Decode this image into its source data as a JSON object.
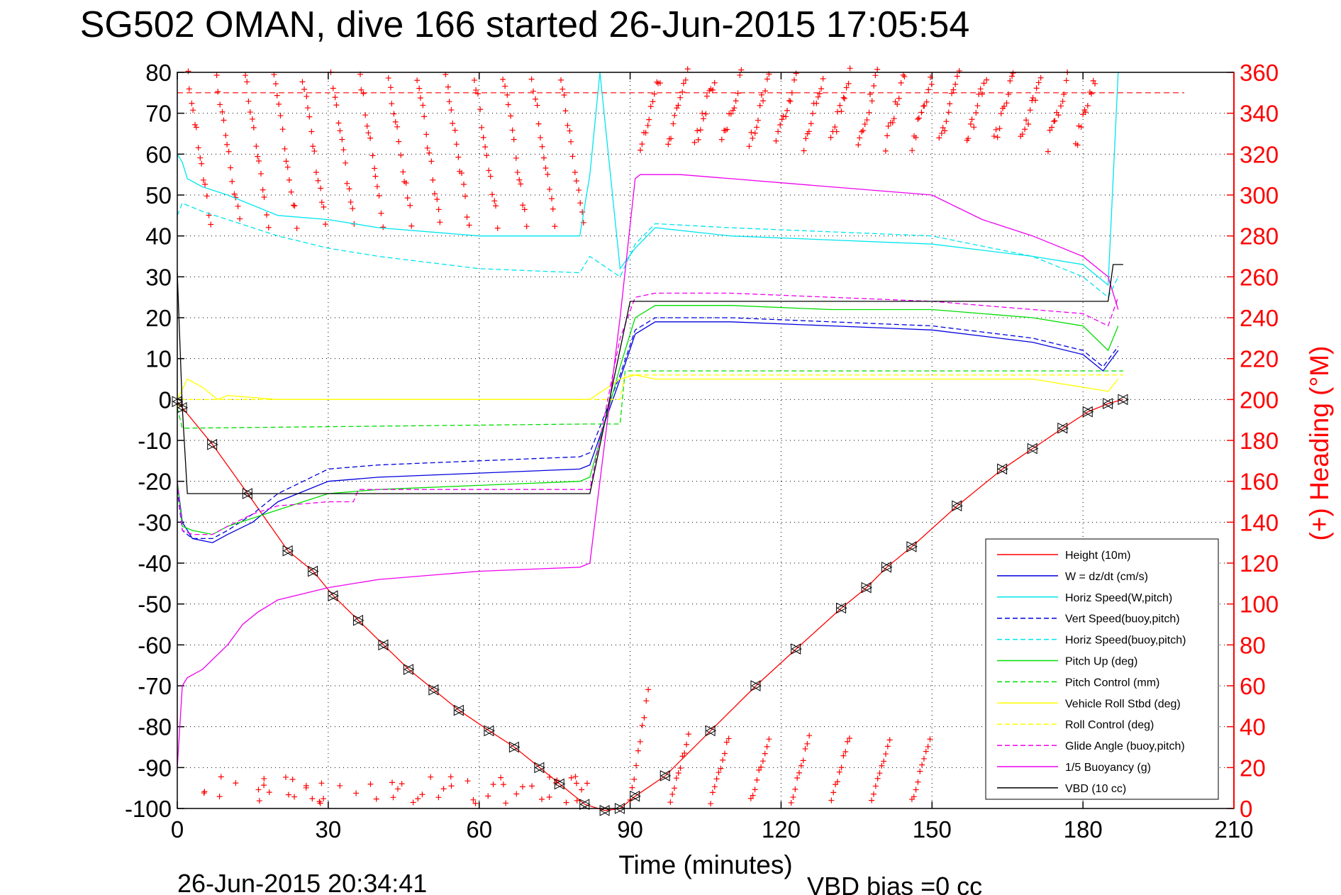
{
  "chart_data": {
    "type": "line",
    "title": "SG502 OMAN, dive 166 started 26-Jun-2015 17:05:54",
    "xlabel": "Time (minutes)",
    "ylabel_right": "(+) Heading (°M)",
    "footer_left": "26-Jun-2015 20:34:41",
    "footer_right": "VBD bias =0 cc",
    "xlim": [
      0,
      210
    ],
    "ylim": [
      -100,
      80
    ],
    "ylim_right": [
      0,
      360
    ],
    "xticks": [
      "0",
      "30",
      "60",
      "90",
      "120",
      "150",
      "180",
      "210"
    ],
    "yticks": [
      "80",
      "70",
      "60",
      "50",
      "40",
      "30",
      "20",
      "10",
      "0",
      "-10",
      "-20",
      "-30",
      "-40",
      "-50",
      "-60",
      "-70",
      "-80",
      "-90",
      "-100"
    ],
    "yticks_right": [
      "360",
      "340",
      "320",
      "300",
      "280",
      "260",
      "240",
      "220",
      "200",
      "180",
      "160",
      "140",
      "120",
      "100",
      "80",
      "60",
      "40",
      "20",
      "0"
    ],
    "grid": true,
    "legend_position": "bottom-right",
    "heading_target": 350,
    "series": [
      {
        "name": "Height (10m)",
        "color": "#ff0000",
        "style": "solid",
        "x": [
          0,
          1,
          7,
          14,
          22,
          27,
          31,
          36,
          41,
          46,
          51,
          56,
          62,
          67,
          72,
          76,
          81,
          85,
          88,
          91,
          97,
          106,
          115,
          123,
          132,
          137,
          141,
          146,
          155,
          164,
          170,
          176,
          181,
          185,
          188
        ],
        "y": [
          -0.5,
          -2,
          -11,
          -23,
          -37,
          -42,
          -48,
          -54,
          -60,
          -66,
          -71,
          -76,
          -81,
          -85,
          -90,
          -94,
          -99,
          -100.5,
          -100,
          -97,
          -92,
          -81,
          -70,
          -61,
          -51,
          -46,
          -41,
          -36,
          -26,
          -17,
          -12,
          -7,
          -3,
          -1,
          0
        ]
      },
      {
        "name": "W = dz/dt (cm/s)",
        "color": "#0000dd",
        "style": "solid",
        "x": [
          0,
          1,
          3,
          7,
          10,
          15,
          20,
          30,
          40,
          60,
          80,
          82,
          88,
          91,
          95,
          110,
          130,
          150,
          170,
          180,
          184,
          187
        ],
        "y": [
          -20,
          -30,
          -34,
          -35,
          -33,
          -30,
          -25,
          -20,
          -19,
          -18,
          -17,
          -16,
          5,
          16,
          19,
          19,
          18,
          17,
          14,
          11,
          7,
          12
        ]
      },
      {
        "name": "Horiz Speed(W,pitch)",
        "color": "#00e5ee",
        "style": "solid",
        "x": [
          0,
          1,
          2,
          5,
          10,
          20,
          30,
          40,
          60,
          80,
          82,
          84,
          88,
          91,
          95,
          110,
          130,
          150,
          170,
          180,
          185,
          187
        ],
        "y": [
          60,
          58,
          54,
          52,
          50,
          45,
          44,
          42,
          40,
          40,
          55,
          80,
          32,
          37,
          42,
          40,
          39,
          38,
          35,
          33,
          28,
          80
        ]
      },
      {
        "name": "Vert Speed(buoy,pitch)",
        "color": "#0000dd",
        "style": "dashed",
        "x": [
          0,
          1,
          3,
          7,
          10,
          15,
          20,
          30,
          40,
          60,
          80,
          82,
          88,
          91,
          95,
          110,
          130,
          150,
          170,
          180,
          184,
          187
        ],
        "y": [
          -22,
          -32,
          -34,
          -34,
          -32,
          -28,
          -23,
          -17,
          -16,
          -15,
          -14,
          -13,
          6,
          17,
          20,
          20,
          19,
          18,
          15,
          12,
          8,
          13
        ]
      },
      {
        "name": "Horiz Speed(buoy,pitch)",
        "color": "#00e5ee",
        "style": "dashed",
        "x": [
          0,
          1,
          5,
          10,
          20,
          30,
          40,
          60,
          80,
          82,
          88,
          91,
          95,
          110,
          130,
          150,
          170,
          180,
          185,
          187
        ],
        "y": [
          45,
          48,
          46,
          44,
          40,
          37,
          35,
          32,
          31,
          35,
          30,
          38,
          43,
          42,
          41,
          40,
          35,
          30,
          25,
          30
        ]
      },
      {
        "name": "Pitch Up (deg)",
        "color": "#00dd00",
        "style": "solid",
        "x": [
          0,
          1,
          3,
          7,
          10,
          15,
          20,
          30,
          40,
          60,
          80,
          82,
          88,
          91,
          95,
          110,
          130,
          150,
          170,
          180,
          185,
          187
        ],
        "y": [
          -20,
          -31,
          -32,
          -33,
          -31,
          -29,
          -27,
          -23,
          -22,
          -21,
          -20,
          -19,
          8,
          20,
          23,
          23,
          22,
          22,
          20,
          18,
          12,
          18
        ]
      },
      {
        "name": "Pitch Control (mm)",
        "color": "#00dd00",
        "style": "dashed",
        "x": [
          0,
          1,
          2,
          81,
          82,
          88,
          89,
          184,
          185,
          188
        ],
        "y": [
          -2,
          -7,
          -7,
          -6,
          -6,
          -6,
          7,
          7,
          7,
          7
        ]
      },
      {
        "name": "Vehicle Roll Stbd (deg)",
        "color": "#ffff00",
        "style": "solid",
        "x": [
          0,
          2,
          5,
          8,
          10,
          20,
          40,
          60,
          80,
          82,
          88,
          91,
          95,
          110,
          130,
          150,
          170,
          180,
          185,
          187
        ],
        "y": [
          0,
          5,
          3,
          0,
          1,
          0,
          0,
          0,
          0,
          0,
          5,
          6,
          5,
          5,
          5,
          5,
          5,
          3,
          2,
          5
        ]
      },
      {
        "name": "Roll Control (deg)",
        "color": "#ffff00",
        "style": "dashed",
        "x": [
          0,
          1,
          81,
          82,
          88,
          89,
          184,
          185,
          188
        ],
        "y": [
          -2,
          0,
          0,
          0,
          0,
          6,
          6,
          6,
          6
        ]
      },
      {
        "name": "Glide Angle (buoy,pitch)",
        "color": "#ee00ee",
        "style": "dashed",
        "x": [
          0,
          1,
          3,
          7,
          10,
          15,
          20,
          30,
          35,
          36,
          40,
          60,
          80,
          82,
          88,
          91,
          95,
          110,
          130,
          150,
          170,
          180,
          185,
          187
        ],
        "y": [
          -20,
          -32,
          -33,
          -33,
          -31,
          -28,
          -26,
          -25,
          -25,
          -22,
          -22,
          -22,
          -22,
          -22,
          15,
          25,
          26,
          26,
          25,
          24,
          22,
          21,
          18,
          25
        ]
      },
      {
        "name": "1/5 Buoyancy (g)",
        "color": "#ee00ee",
        "style": "solid",
        "x": [
          0,
          1,
          2,
          5,
          10,
          13,
          16,
          20,
          30,
          40,
          60,
          80,
          82,
          88,
          91,
          92,
          100,
          110,
          130,
          150,
          160,
          165,
          170,
          180,
          185,
          187
        ],
        "y": [
          -90,
          -70,
          -68,
          -66,
          -60,
          -55,
          -52,
          -49,
          -46,
          -44,
          -42,
          -41,
          -40,
          20,
          54,
          55,
          55,
          54,
          52,
          50,
          44,
          42,
          40,
          35,
          30,
          22
        ]
      },
      {
        "name": "VBD (10 cc)",
        "color": "#000000",
        "style": "solid",
        "x": [
          0,
          1,
          2,
          82,
          90,
          91,
          92,
          184,
          185,
          186,
          188
        ],
        "y": [
          31,
          -2,
          -23,
          -23,
          24,
          24,
          24,
          24,
          24,
          33,
          33
        ]
      }
    ]
  }
}
